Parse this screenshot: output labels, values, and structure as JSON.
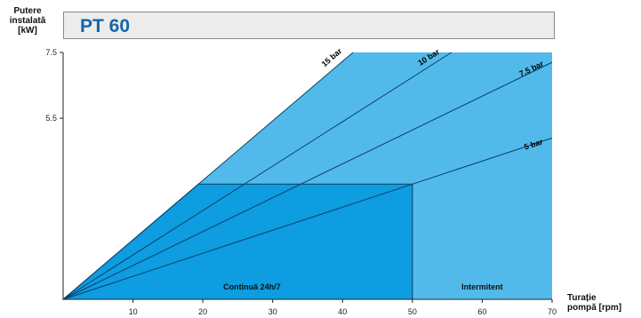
{
  "chart_data": {
    "type": "area",
    "title": "PT 60",
    "ylabel": "Putere\ninstalată\n[kW]",
    "xlabel": "Turație\npompă [rpm]",
    "xlim": [
      0,
      70
    ],
    "ylim": [
      0,
      7.5
    ],
    "x_ticks": [
      10,
      20,
      30,
      40,
      50,
      60,
      70
    ],
    "y_ticks": [
      5.5,
      7.5
    ],
    "y_tick_labels": [
      "5.5",
      "7.5"
    ],
    "series": [
      {
        "name": "15 bar",
        "points": [
          [
            0,
            0
          ],
          [
            41.5,
            7.5
          ]
        ]
      },
      {
        "name": "10 bar",
        "points": [
          [
            0,
            0
          ],
          [
            55.6,
            7.5
          ]
        ]
      },
      {
        "name": "7.5 bar",
        "points": [
          [
            0,
            0
          ],
          [
            70,
            7.2
          ]
        ]
      },
      {
        "name": "5 bar",
        "points": [
          [
            0,
            0
          ],
          [
            70,
            4.9
          ]
        ]
      }
    ],
    "regions": [
      {
        "label": "Continuă 24h/7",
        "x": [
          0,
          50
        ],
        "y_max": 3.5
      },
      {
        "label": "Intermitent",
        "x": [
          50,
          70
        ],
        "y_max": 7.5
      }
    ],
    "grid": false,
    "colors": {
      "background": "#52baeb",
      "continuous": "#0d9de0",
      "lines": "#0b3f66",
      "title": "#1565a8"
    }
  }
}
